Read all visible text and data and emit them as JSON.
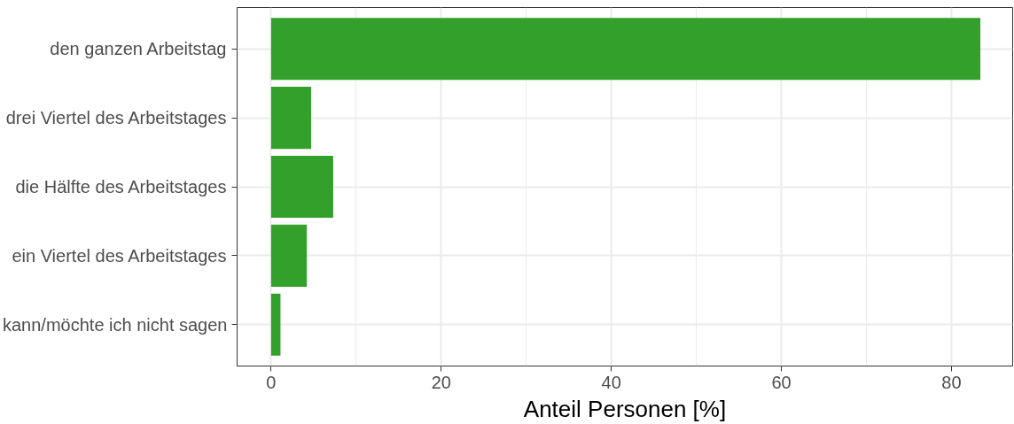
{
  "chart_data": {
    "type": "bar",
    "orientation": "horizontal",
    "xlabel": "Anteil Personen [%]",
    "categories": [
      "den ganzen Arbeitstag",
      "drei Viertel des Arbeitstages",
      "die Hälfte des Arbeitstages",
      "ein Viertel des Arbeitstages",
      "kann/möchte ich nicht sagen"
    ],
    "values": [
      83.4,
      4.7,
      7.3,
      4.2,
      1.1
    ],
    "color": "#33a02c",
    "xlim": [
      -4,
      87.2
    ],
    "xticks": [
      0,
      20,
      40,
      60,
      80
    ],
    "grid": true
  }
}
